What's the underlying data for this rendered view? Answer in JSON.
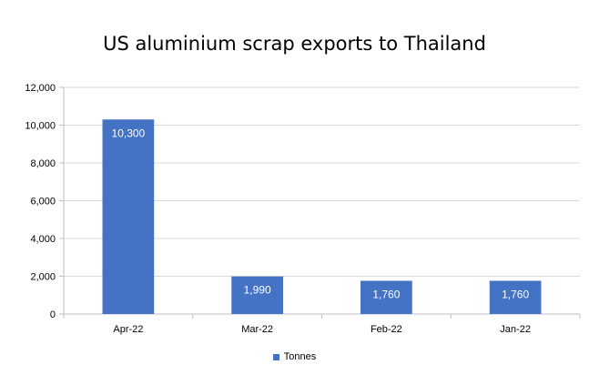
{
  "chart_data": {
    "type": "bar",
    "title": "US aluminium scrap exports to Thailand",
    "categories": [
      "Apr-22",
      "Mar-22",
      "Feb-22",
      "Jan-22"
    ],
    "series": [
      {
        "name": "Tonnes",
        "values": [
          10300,
          1990,
          1760,
          1760
        ],
        "data_labels": [
          "10,300",
          "1,990",
          "1,760",
          "1,760"
        ]
      }
    ],
    "ylim": [
      0,
      12000
    ],
    "yticks": [
      0,
      2000,
      4000,
      6000,
      8000,
      10000,
      12000
    ],
    "ytick_labels": [
      "0",
      "2,000",
      "4,000",
      "6,000",
      "8,000",
      "10,000",
      "12,000"
    ],
    "grid": true,
    "legend_position": "bottom",
    "colors": {
      "bar": "#4472c4",
      "grid": "#d9d9d9",
      "axis": "#bfbfbf"
    }
  }
}
